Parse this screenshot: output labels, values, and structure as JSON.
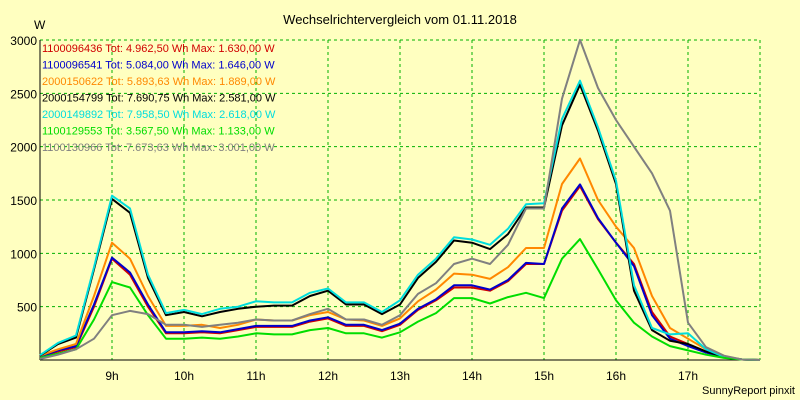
{
  "chart_data": {
    "type": "line",
    "title": "Wechselrichtervergleich vom 01.11.2018",
    "ylabel": "W",
    "xlabel": "",
    "footer": "SunnyReport pinxit",
    "ylim": [
      0,
      3000
    ],
    "xlim": [
      8.0,
      18.0
    ],
    "yticks": [
      500,
      1000,
      1500,
      2000,
      2500,
      3000
    ],
    "xticks": [
      {
        "value": 9,
        "label": "9h"
      },
      {
        "value": 10,
        "label": "10h"
      },
      {
        "value": 11,
        "label": "11h"
      },
      {
        "value": 12,
        "label": "12h"
      },
      {
        "value": 13,
        "label": "13h"
      },
      {
        "value": 14,
        "label": "14h"
      },
      {
        "value": 15,
        "label": "15h"
      },
      {
        "value": 16,
        "label": "16h"
      },
      {
        "value": 17,
        "label": "17h"
      }
    ],
    "grid": true,
    "legend_position": "top-left",
    "x": [
      8.0,
      8.25,
      8.5,
      8.75,
      9.0,
      9.25,
      9.5,
      9.75,
      10.0,
      10.25,
      10.5,
      10.75,
      11.0,
      11.25,
      11.5,
      11.75,
      12.0,
      12.25,
      12.5,
      12.75,
      13.0,
      13.25,
      13.5,
      13.75,
      14.0,
      14.25,
      14.5,
      14.75,
      15.0,
      15.25,
      15.5,
      15.75,
      16.0,
      16.25,
      16.5,
      16.75,
      17.0,
      17.25,
      17.5,
      17.75,
      18.0
    ],
    "series": [
      {
        "name": "1100096436 Tot: 4.962,50 Wh Max: 1.630,00 W",
        "color": "#d00000",
        "values": [
          30,
          80,
          120,
          500,
          950,
          800,
          500,
          250,
          250,
          260,
          250,
          280,
          310,
          310,
          310,
          360,
          390,
          320,
          320,
          270,
          330,
          470,
          560,
          680,
          680,
          650,
          740,
          900,
          900,
          1400,
          1630,
          1320,
          1100,
          900,
          450,
          220,
          150,
          80,
          30,
          5,
          0
        ]
      },
      {
        "name": "1100096541 Tot: 5.084,00 Wh Max: 1.646,00 W",
        "color": "#0000cc",
        "values": [
          30,
          90,
          130,
          520,
          960,
          820,
          520,
          260,
          260,
          270,
          260,
          290,
          320,
          320,
          320,
          370,
          400,
          330,
          330,
          280,
          340,
          480,
          570,
          700,
          700,
          660,
          750,
          910,
          900,
          1420,
          1646,
          1330,
          1100,
          880,
          420,
          200,
          130,
          70,
          25,
          5,
          0
        ]
      },
      {
        "name": "2000150622 Tot: 5.893,63 Wh Max: 1.889,00 W",
        "color": "#ff8800",
        "values": [
          40,
          100,
          150,
          600,
          1100,
          950,
          600,
          320,
          320,
          330,
          300,
          330,
          380,
          370,
          370,
          420,
          450,
          380,
          370,
          320,
          390,
          550,
          660,
          810,
          800,
          760,
          870,
          1050,
          1050,
          1650,
          1889,
          1500,
          1250,
          1050,
          600,
          300,
          200,
          100,
          35,
          5,
          0
        ]
      },
      {
        "name": "2000154799 Tot: 7.690,75 Wh Max: 2.581,00 W",
        "color": "#000000",
        "values": [
          40,
          150,
          210,
          850,
          1510,
          1380,
          770,
          420,
          450,
          410,
          450,
          480,
          500,
          510,
          510,
          600,
          650,
          520,
          520,
          430,
          520,
          770,
          920,
          1120,
          1100,
          1040,
          1180,
          1430,
          1430,
          2200,
          2581,
          2150,
          1650,
          650,
          280,
          180,
          150,
          80,
          30,
          5,
          0
        ]
      },
      {
        "name": "2000149892 Tot: 7.958,50 Wh Max: 2.618,00 W",
        "color": "#00dddd",
        "values": [
          45,
          160,
          230,
          870,
          1540,
          1420,
          800,
          440,
          470,
          430,
          480,
          500,
          550,
          540,
          540,
          630,
          670,
          540,
          540,
          450,
          560,
          800,
          950,
          1150,
          1130,
          1080,
          1230,
          1460,
          1470,
          2260,
          2618,
          2180,
          1680,
          700,
          300,
          240,
          250,
          100,
          30,
          5,
          0
        ]
      },
      {
        "name": "1100129553 Tot: 3.567,50 Wh Max: 1.133,00 W",
        "color": "#00dd00",
        "values": [
          20,
          60,
          100,
          380,
          730,
          680,
          420,
          200,
          200,
          210,
          200,
          220,
          250,
          240,
          240,
          280,
          300,
          250,
          250,
          210,
          260,
          360,
          440,
          580,
          580,
          530,
          590,
          630,
          580,
          950,
          1133,
          850,
          560,
          350,
          220,
          130,
          90,
          50,
          20,
          5,
          0
        ]
      },
      {
        "name": "1100130966 Tot: 7.673,63 Wh Max: 3.001,00 W",
        "color": "#808080",
        "values": [
          10,
          50,
          100,
          200,
          420,
          460,
          430,
          330,
          330,
          310,
          330,
          350,
          380,
          370,
          370,
          430,
          480,
          380,
          380,
          330,
          420,
          620,
          720,
          900,
          950,
          900,
          1080,
          1420,
          1420,
          2450,
          3001,
          2550,
          2250,
          2000,
          1750,
          1400,
          350,
          120,
          40,
          5,
          0
        ]
      }
    ]
  }
}
